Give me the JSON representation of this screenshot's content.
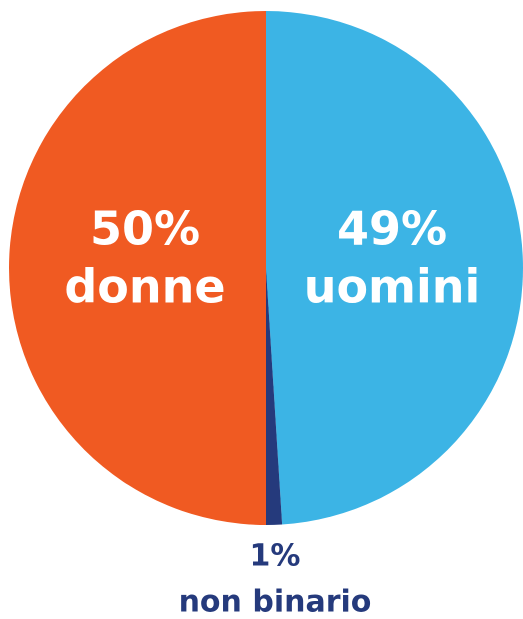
{
  "chart_data": {
    "type": "pie",
    "categories": [
      "uomini",
      "non binario",
      "donne"
    ],
    "values": [
      49,
      1,
      50
    ],
    "value_labels": [
      "49%",
      "1%",
      "50%"
    ],
    "colors": [
      "#3cb4e5",
      "#253a7c",
      "#f05a22"
    ],
    "start_angle": 90,
    "direction": "clockwise"
  }
}
